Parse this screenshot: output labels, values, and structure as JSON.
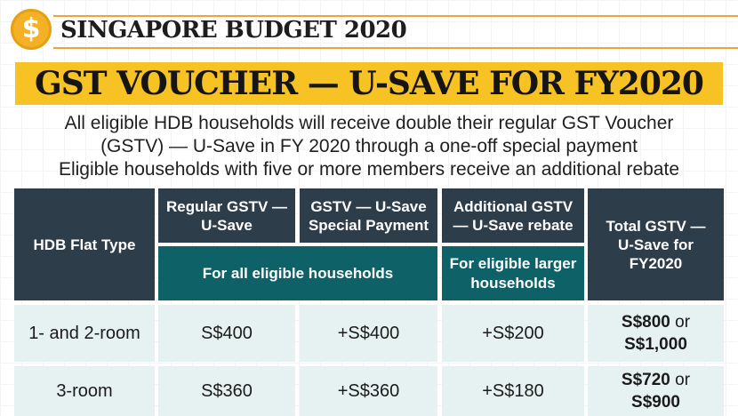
{
  "header": {
    "coin_symbol": "$",
    "brand": "SINGAPORE BUDGET 2020",
    "title": "GST VOUCHER — U-SAVE FOR FY2020"
  },
  "intro": {
    "line1": "All eligible HDB households will receive double their regular GST Voucher",
    "line2": "(GSTV) — U-Save in FY 2020 through a one-off special payment",
    "line3": "Eligible households with five or more members receive an additional rebate"
  },
  "table": {
    "headers": {
      "flat_type": "HDB Flat Type",
      "regular": "Regular GSTV — U-Save",
      "special": "GSTV — U-Save Special Payment",
      "additional": "Additional GSTV — U-Save rebate",
      "total": "Total GSTV — U-Save for FY2020"
    },
    "subheaders": {
      "all_eligible": "For all eligible households",
      "larger": "For eligible larger households"
    },
    "rows": [
      {
        "flat_type": "1- and 2-room",
        "regular": "S$400",
        "special": "+S$400",
        "additional": "+S$200",
        "total_a": "S$800",
        "total_or": " or",
        "total_b": "S$1,000"
      },
      {
        "flat_type": "3-room",
        "regular": "S$360",
        "special": "+S$360",
        "additional": "+S$180",
        "total_a": "S$720",
        "total_or": " or",
        "total_b": "S$900"
      }
    ]
  },
  "colors": {
    "accent_yellow": "#f7c224",
    "orange_rule": "#f2a23a",
    "dark_header": "#2e3d4a",
    "teal_header": "#0e6267",
    "row_fill": "#e6f2f1"
  }
}
